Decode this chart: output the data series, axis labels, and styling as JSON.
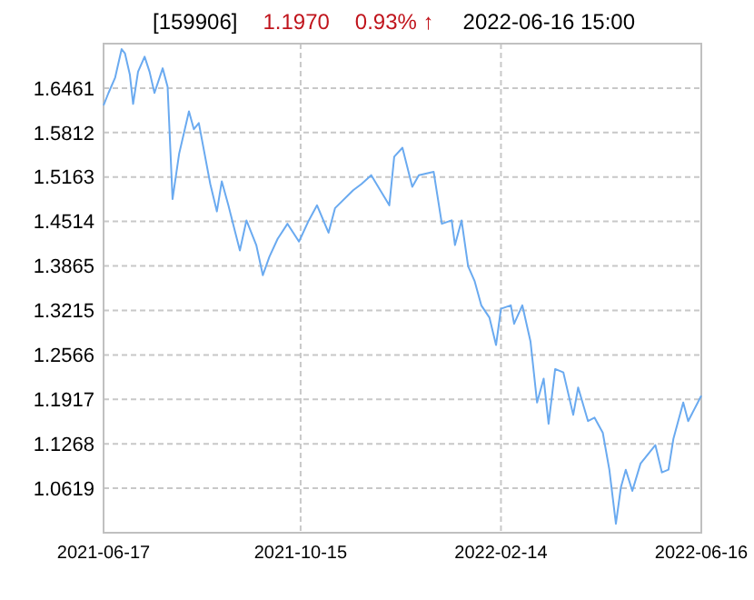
{
  "chart_data": {
    "type": "line",
    "title": "[159906]",
    "annotations": [
      "1.1970",
      "0.93% ↑",
      "2022-06-16 15:00"
    ],
    "xlim": [
      "2021-06-17",
      "2022-06-16"
    ],
    "xticks": [
      "2021-06-17",
      "2021-10-15",
      "2022-02-14",
      "2022-06-16"
    ],
    "ylim": [
      0.997,
      1.711
    ],
    "yticks": [
      1.0619,
      1.1268,
      1.1917,
      1.2566,
      1.3215,
      1.3865,
      1.4514,
      1.5163,
      1.5812,
      1.6461
    ],
    "grid": true,
    "line_style": "solid",
    "series": [
      {
        "color": "#6aaaf0",
        "x": [
          "2021-06-17",
          "2021-06-20",
          "2021-06-24",
          "2021-06-28",
          "2021-06-30",
          "2021-07-03",
          "2021-07-05",
          "2021-07-08",
          "2021-07-12",
          "2021-07-15",
          "2021-07-18",
          "2021-07-23",
          "2021-07-26",
          "2021-07-29",
          "2021-08-02",
          "2021-08-08",
          "2021-08-11",
          "2021-08-14",
          "2021-08-21",
          "2021-08-25",
          "2021-08-28",
          "2021-09-01",
          "2021-09-08",
          "2021-09-12",
          "2021-09-18",
          "2021-09-22",
          "2021-09-26",
          "2021-10-01",
          "2021-10-07",
          "2021-10-14",
          "2021-10-20",
          "2021-10-25",
          "2021-11-01",
          "2021-11-05",
          "2021-11-16",
          "2021-11-21",
          "2021-11-27",
          "2021-12-08",
          "2021-12-11",
          "2021-12-16",
          "2021-12-22",
          "2021-12-26",
          "2022-01-04",
          "2022-01-09",
          "2022-01-15",
          "2022-01-17",
          "2022-01-21",
          "2022-01-25",
          "2022-01-29",
          "2022-02-02",
          "2022-02-07",
          "2022-02-11",
          "2022-02-14",
          "2022-02-20",
          "2022-02-22",
          "2022-02-27",
          "2022-03-04",
          "2022-03-08",
          "2022-03-12",
          "2022-03-15",
          "2022-03-19",
          "2022-03-24",
          "2022-03-30",
          "2022-04-02",
          "2022-04-08",
          "2022-04-12",
          "2022-04-17",
          "2022-04-21",
          "2022-04-25",
          "2022-04-28",
          "2022-05-01",
          "2022-05-05",
          "2022-05-10",
          "2022-05-19",
          "2022-05-23",
          "2022-05-27",
          "2022-05-30",
          "2022-06-05",
          "2022-06-08",
          "2022-06-16"
        ],
        "values": [
          1.621,
          1.639,
          1.661,
          1.703,
          1.697,
          1.666,
          1.623,
          1.67,
          1.692,
          1.67,
          1.639,
          1.675,
          1.648,
          1.484,
          1.55,
          1.612,
          1.586,
          1.595,
          1.506,
          1.466,
          1.51,
          1.475,
          1.409,
          1.453,
          1.417,
          1.373,
          1.4,
          1.426,
          1.448,
          1.422,
          1.453,
          1.475,
          1.435,
          1.471,
          1.497,
          1.506,
          1.519,
          1.475,
          1.546,
          1.559,
          1.502,
          1.519,
          1.524,
          1.448,
          1.453,
          1.417,
          1.453,
          1.386,
          1.364,
          1.329,
          1.311,
          1.271,
          1.324,
          1.329,
          1.302,
          1.329,
          1.276,
          1.187,
          1.222,
          1.156,
          1.236,
          1.231,
          1.169,
          1.209,
          1.16,
          1.165,
          1.143,
          1.089,
          1.01,
          1.063,
          1.089,
          1.058,
          1.098,
          1.125,
          1.085,
          1.089,
          1.134,
          1.187,
          1.16,
          1.197
        ]
      }
    ]
  }
}
